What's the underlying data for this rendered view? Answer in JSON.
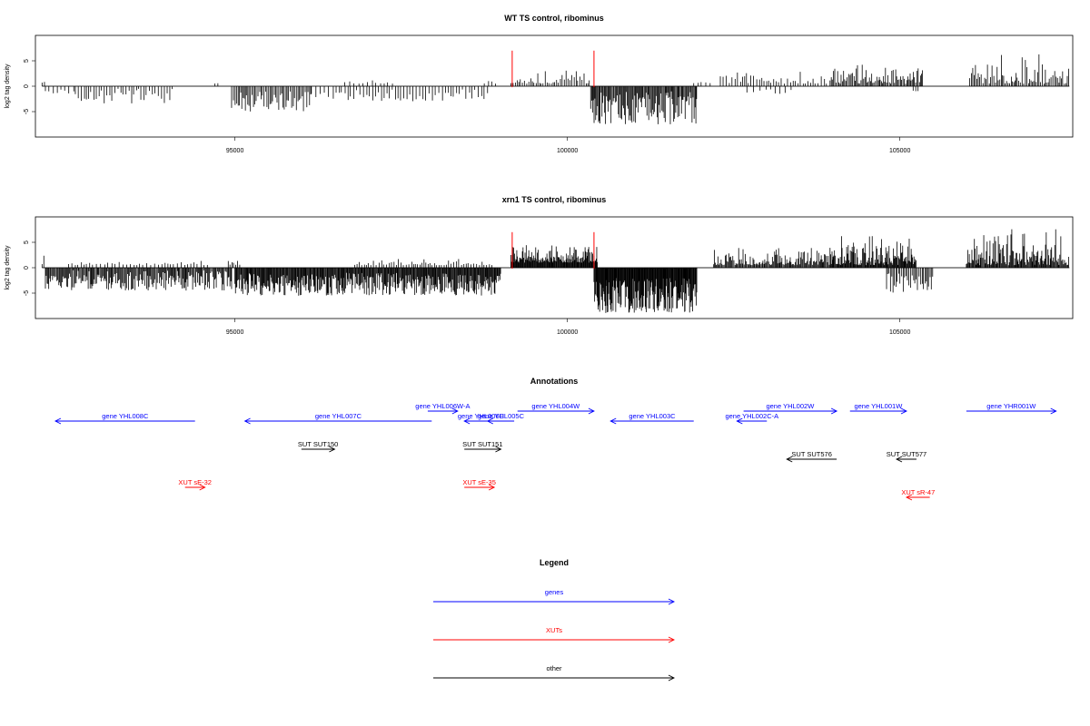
{
  "colors": {
    "gene": "#0000ff",
    "xut": "#ff0000",
    "other": "#000000",
    "marker": "#ff0000"
  },
  "chart_data": [
    {
      "type": "bar",
      "title": "WT TS control, ribominus",
      "ylabel": "log2 tag density",
      "xlim": [
        92000,
        107600
      ],
      "ylim": [
        -10,
        10
      ],
      "xticks": [
        95000,
        100000,
        105000
      ],
      "xtick_labels": [
        "95000",
        "100000",
        "105000"
      ],
      "yticks": [
        -5,
        0,
        5
      ],
      "ytick_labels": [
        "-5",
        "0",
        "5"
      ],
      "markers_x": [
        99170,
        100400
      ],
      "regions": [
        {
          "start": 92100,
          "end": 92150,
          "min": 0.5,
          "max": 1.5,
          "step": 30
        },
        {
          "start": 92150,
          "end": 92600,
          "min": -1.5,
          "max": -0.5,
          "step": 60
        },
        {
          "start": 92600,
          "end": 94100,
          "min": -3.5,
          "max": -0.5,
          "step": 40
        },
        {
          "start": 94700,
          "end": 94750,
          "min": 0.5,
          "max": 1.5,
          "step": 40
        },
        {
          "start": 94950,
          "end": 96150,
          "min": -5,
          "max": -1,
          "step": 22
        },
        {
          "start": 96150,
          "end": 96600,
          "min": -2.5,
          "max": -0.5,
          "step": 60
        },
        {
          "start": 96650,
          "end": 97400,
          "min": 0.5,
          "max": 1.5,
          "step": 60
        },
        {
          "start": 96600,
          "end": 98800,
          "min": -3,
          "max": -0.5,
          "step": 45
        },
        {
          "start": 98750,
          "end": 98950,
          "min": 0.5,
          "max": 1.5,
          "step": 60
        },
        {
          "start": 99150,
          "end": 100350,
          "min": 0.5,
          "max": 3.5,
          "step": 28
        },
        {
          "start": 100350,
          "end": 101950,
          "min": -7.5,
          "max": -1,
          "step": 14
        },
        {
          "start": 101900,
          "end": 102150,
          "min": 0.5,
          "max": 1.5,
          "step": 60
        },
        {
          "start": 102300,
          "end": 103900,
          "min": 0.5,
          "max": 3.5,
          "step": 38
        },
        {
          "start": 102700,
          "end": 103400,
          "min": -1.5,
          "max": -0.5,
          "step": 80
        },
        {
          "start": 103950,
          "end": 105350,
          "min": 0.5,
          "max": 6,
          "step": 18
        },
        {
          "start": 105200,
          "end": 105300,
          "min": -1,
          "max": -0.5,
          "step": 40
        },
        {
          "start": 106050,
          "end": 107550,
          "min": 0.5,
          "max": 7.5,
          "step": 22
        }
      ]
    },
    {
      "type": "bar",
      "title": "xrn1 TS control, ribominus",
      "ylabel": "log2 tag density",
      "xlim": [
        92000,
        107600
      ],
      "ylim": [
        -10,
        10
      ],
      "xticks": [
        95000,
        100000,
        105000
      ],
      "xtick_labels": [
        "95000",
        "100000",
        "105000"
      ],
      "yticks": [
        -5,
        0,
        5
      ],
      "ytick_labels": [
        "-5",
        "0",
        "5"
      ],
      "markers_x": [
        99170,
        100400
      ],
      "regions": [
        {
          "start": 92100,
          "end": 92150,
          "min": 0.5,
          "max": 2.5,
          "step": 30
        },
        {
          "start": 92150,
          "end": 94950,
          "min": -4.5,
          "max": -0.5,
          "step": 14
        },
        {
          "start": 92500,
          "end": 94600,
          "min": 0.5,
          "max": 1.5,
          "step": 50
        },
        {
          "start": 94900,
          "end": 95100,
          "min": 0.5,
          "max": 2,
          "step": 30
        },
        {
          "start": 95000,
          "end": 99000,
          "min": -5.5,
          "max": -1,
          "step": 11
        },
        {
          "start": 96800,
          "end": 98900,
          "min": 0.5,
          "max": 2,
          "step": 35
        },
        {
          "start": 99150,
          "end": 100450,
          "min": 1,
          "max": 5,
          "step": 9
        },
        {
          "start": 100400,
          "end": 101950,
          "min": -9,
          "max": -2,
          "step": 8
        },
        {
          "start": 102200,
          "end": 103950,
          "min": 0.5,
          "max": 4.5,
          "step": 14
        },
        {
          "start": 103950,
          "end": 105250,
          "min": 0.5,
          "max": 7,
          "step": 10
        },
        {
          "start": 104800,
          "end": 105500,
          "min": -5,
          "max": -1,
          "step": 22
        },
        {
          "start": 106000,
          "end": 107550,
          "min": 0.5,
          "max": 8.5,
          "step": 12
        }
      ]
    }
  ],
  "annotations": {
    "title": "Annotations",
    "xlim": [
      92000,
      107600
    ],
    "features": [
      {
        "label": "gene YHL008C",
        "kind": "gene",
        "start": 92300,
        "end": 94400,
        "dir": "left",
        "row": 1
      },
      {
        "label": "gene YHL007C",
        "kind": "gene",
        "start": 95150,
        "end": 97960,
        "dir": "left",
        "row": 1
      },
      {
        "label": "gene YHL006W-A",
        "kind": "gene",
        "start": 97900,
        "end": 98350,
        "dir": "right",
        "row": 0
      },
      {
        "label": "gene YHL006C",
        "kind": "gene",
        "start": 98450,
        "end": 98950,
        "dir": "left",
        "row": 1
      },
      {
        "label": "gene YHL005C",
        "kind": "gene",
        "start": 98800,
        "end": 99200,
        "dir": "left",
        "row": 1
      },
      {
        "label": "gene YHL004W",
        "kind": "gene",
        "start": 99250,
        "end": 100400,
        "dir": "right",
        "row": 0
      },
      {
        "label": "gene YHL003C",
        "kind": "gene",
        "start": 100650,
        "end": 101900,
        "dir": "left",
        "row": 1
      },
      {
        "label": "gene YHL002W",
        "kind": "gene",
        "start": 102650,
        "end": 104050,
        "dir": "right",
        "row": 0
      },
      {
        "label": "gene YHL002C-A",
        "kind": "gene",
        "start": 102550,
        "end": 103000,
        "dir": "left",
        "row": 1
      },
      {
        "label": "gene YHL001W",
        "kind": "gene",
        "start": 104250,
        "end": 105100,
        "dir": "right",
        "row": 0
      },
      {
        "label": "gene YHR001W",
        "kind": "gene",
        "start": 106000,
        "end": 107350,
        "dir": "right",
        "row": 0
      },
      {
        "label": "SUT SUT150",
        "kind": "other",
        "start": 96000,
        "end": 96500,
        "dir": "right",
        "row": 2
      },
      {
        "label": "SUT SUT151",
        "kind": "other",
        "start": 98450,
        "end": 99000,
        "dir": "right",
        "row": 2
      },
      {
        "label": "SUT SUT576",
        "kind": "other",
        "start": 103300,
        "end": 104050,
        "dir": "left",
        "row": 3
      },
      {
        "label": "SUT SUT577",
        "kind": "other",
        "start": 104950,
        "end": 105250,
        "dir": "left",
        "row": 3
      },
      {
        "label": "XUT sE-32",
        "kind": "xut",
        "start": 94250,
        "end": 94550,
        "dir": "right",
        "row": 4
      },
      {
        "label": "XUT sE-35",
        "kind": "xut",
        "start": 98450,
        "end": 98900,
        "dir": "right",
        "row": 4
      },
      {
        "label": "XUT sR-47",
        "kind": "xut",
        "start": 105100,
        "end": 105450,
        "dir": "left",
        "row": 5
      }
    ]
  },
  "legend": {
    "title": "Legend",
    "items": [
      {
        "label": "genes",
        "kind": "gene"
      },
      {
        "label": "XUTs",
        "kind": "xut"
      },
      {
        "label": "other",
        "kind": "other"
      }
    ]
  }
}
